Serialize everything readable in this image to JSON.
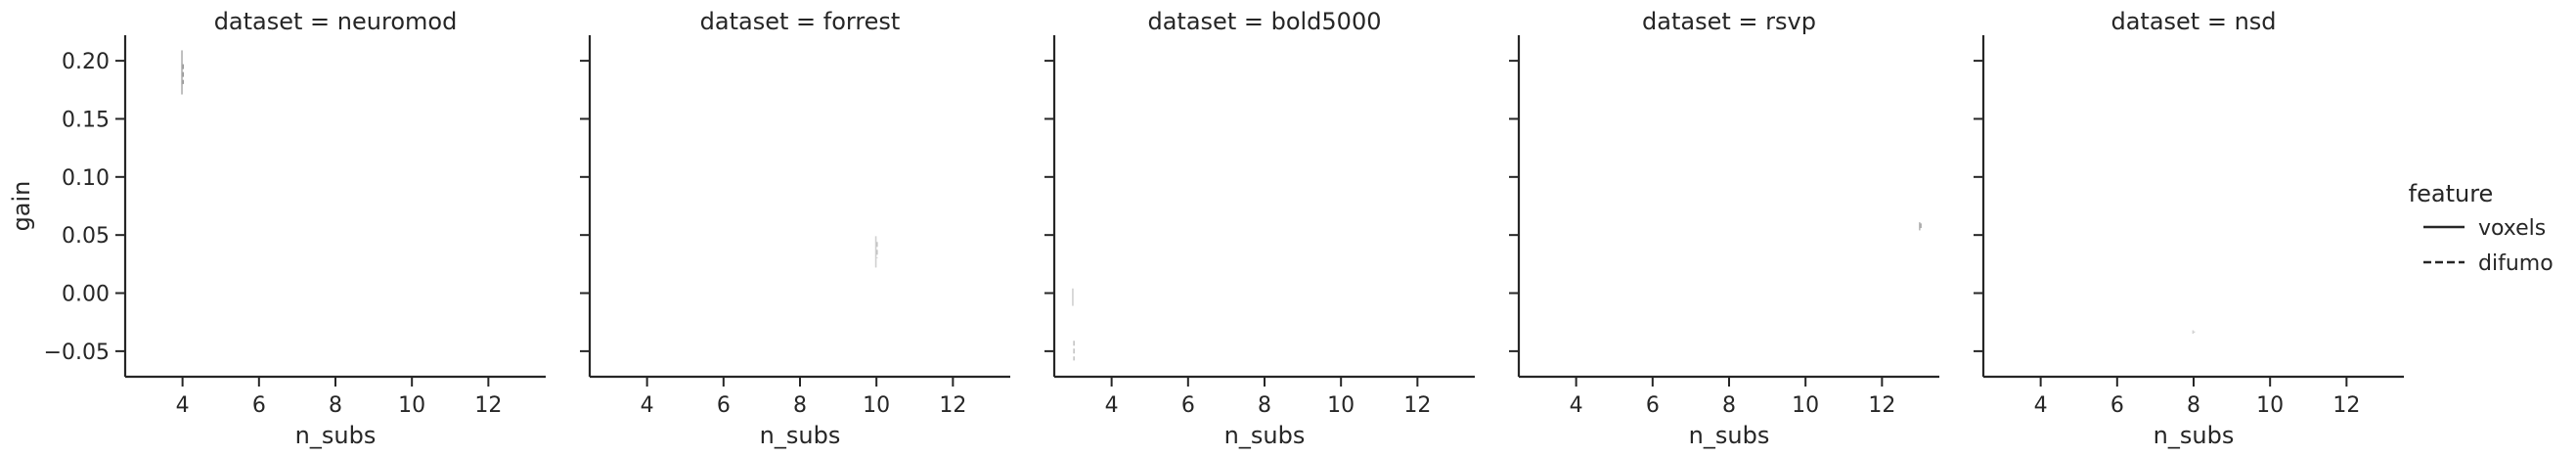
{
  "chart_data": {
    "type": "line",
    "layout": "facet-grid",
    "facet_variable": "dataset",
    "xlabel": "n_subs",
    "ylabel": "gain",
    "xlim": [
      2.5,
      13.5
    ],
    "ylim": [
      -0.072,
      0.222
    ],
    "xticks": [
      4,
      6,
      8,
      10,
      12
    ],
    "yticks": [
      -0.05,
      0.0,
      0.05,
      0.1,
      0.15,
      0.2
    ],
    "ytick_labels": [
      "−0.05",
      "0.00",
      "0.05",
      "0.10",
      "0.15",
      "0.20"
    ],
    "grid": false,
    "legend": {
      "title": "feature",
      "placement": "right",
      "entries": [
        {
          "label": "voxels",
          "style": "solid"
        },
        {
          "label": "difumo",
          "style": "dashed"
        }
      ]
    },
    "panels": [
      {
        "title": "dataset = neuromod",
        "series": [
          {
            "feature": "voxels",
            "x": [
              4,
              4
            ],
            "y": [
              0.209,
              0.171
            ],
            "color": "#b0b0b0"
          },
          {
            "feature": "difumo",
            "x": [
              4,
              4
            ],
            "y": [
              0.197,
              0.18
            ],
            "color": "#9a9a9a"
          }
        ]
      },
      {
        "title": "dataset = forrest",
        "series": [
          {
            "feature": "voxels",
            "x": [
              10,
              10
            ],
            "y": [
              0.049,
              0.022
            ],
            "color": "#d0d0d0"
          },
          {
            "feature": "difumo",
            "x": [
              10,
              10
            ],
            "y": [
              0.044,
              0.03
            ],
            "color": "#c4c4c4"
          }
        ]
      },
      {
        "title": "dataset = bold5000",
        "series": [
          {
            "feature": "voxels",
            "x": [
              3,
              3
            ],
            "y": [
              0.004,
              -0.011
            ],
            "color": "#d0d0d0"
          },
          {
            "feature": "difumo",
            "x": [
              3,
              3
            ],
            "y": [
              -0.041,
              -0.058
            ],
            "color": "#c4c4c4"
          }
        ]
      },
      {
        "title": "dataset = rsvp",
        "series": [
          {
            "feature": "voxels",
            "x": [
              13,
              13
            ],
            "y": [
              0.061,
              0.054
            ],
            "color": "#b8b8b8"
          },
          {
            "feature": "difumo",
            "x": [
              13,
              13
            ],
            "y": [
              0.06,
              0.056
            ],
            "color": "#a8a8a8"
          }
        ]
      },
      {
        "title": "dataset = nsd",
        "series": [
          {
            "feature": "voxels",
            "x": [
              8,
              8
            ],
            "y": [
              -0.032,
              -0.035
            ],
            "color": "#d4d4d4"
          },
          {
            "feature": "difumo",
            "x": [
              8,
              8
            ],
            "y": [
              -0.033,
              -0.034
            ],
            "color": "#cfcfcf"
          }
        ]
      }
    ]
  }
}
